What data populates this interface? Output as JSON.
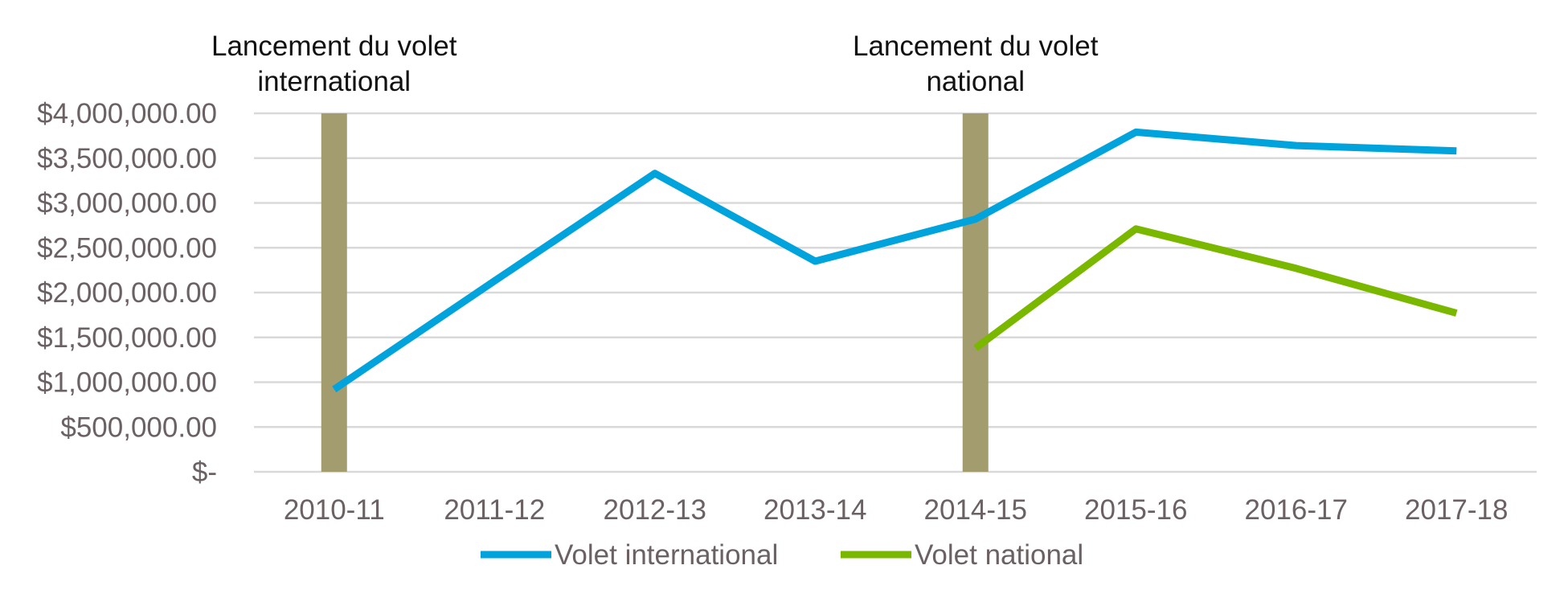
{
  "chart_data": {
    "type": "line",
    "title": "",
    "xlabel": "",
    "ylabel": "",
    "categories": [
      "2010-11",
      "2011-12",
      "2012-13",
      "2013-14",
      "2014-15",
      "2015-16",
      "2016-17",
      "2017-18"
    ],
    "y_tick_labels": [
      "$-",
      "$500,000.00",
      "$1,000,000.00",
      "$1,500,000.00",
      "$2,000,000.00",
      "$2,500,000.00",
      "$3,000,000.00",
      "$3,500,000.00",
      "$4,000,000.00"
    ],
    "ylim": [
      0,
      4000000
    ],
    "y_tick_values": [
      0,
      500000,
      1000000,
      1500000,
      2000000,
      2500000,
      3000000,
      3500000,
      4000000
    ],
    "grid": true,
    "legend_position": "bottom",
    "series": [
      {
        "name": "Volet international",
        "color": "#00a3dc",
        "values": [
          920000,
          2130000,
          3330000,
          2350000,
          2820000,
          3790000,
          3640000,
          3580000
        ]
      },
      {
        "name": "Volet national",
        "color": "#7ab800",
        "values": [
          null,
          null,
          null,
          null,
          1380000,
          2710000,
          2270000,
          1770000
        ]
      }
    ],
    "markers": [
      {
        "category": "2010-11",
        "label_line1": "Lancement du volet",
        "label_line2": "international",
        "color": "#a39c6e"
      },
      {
        "category": "2014-15",
        "label_line1": "Lancement du volet",
        "label_line2": "national",
        "color": "#a39c6e"
      }
    ],
    "colors": {
      "grid": "#d9d9d9",
      "axis_text": "#6b6163"
    }
  }
}
